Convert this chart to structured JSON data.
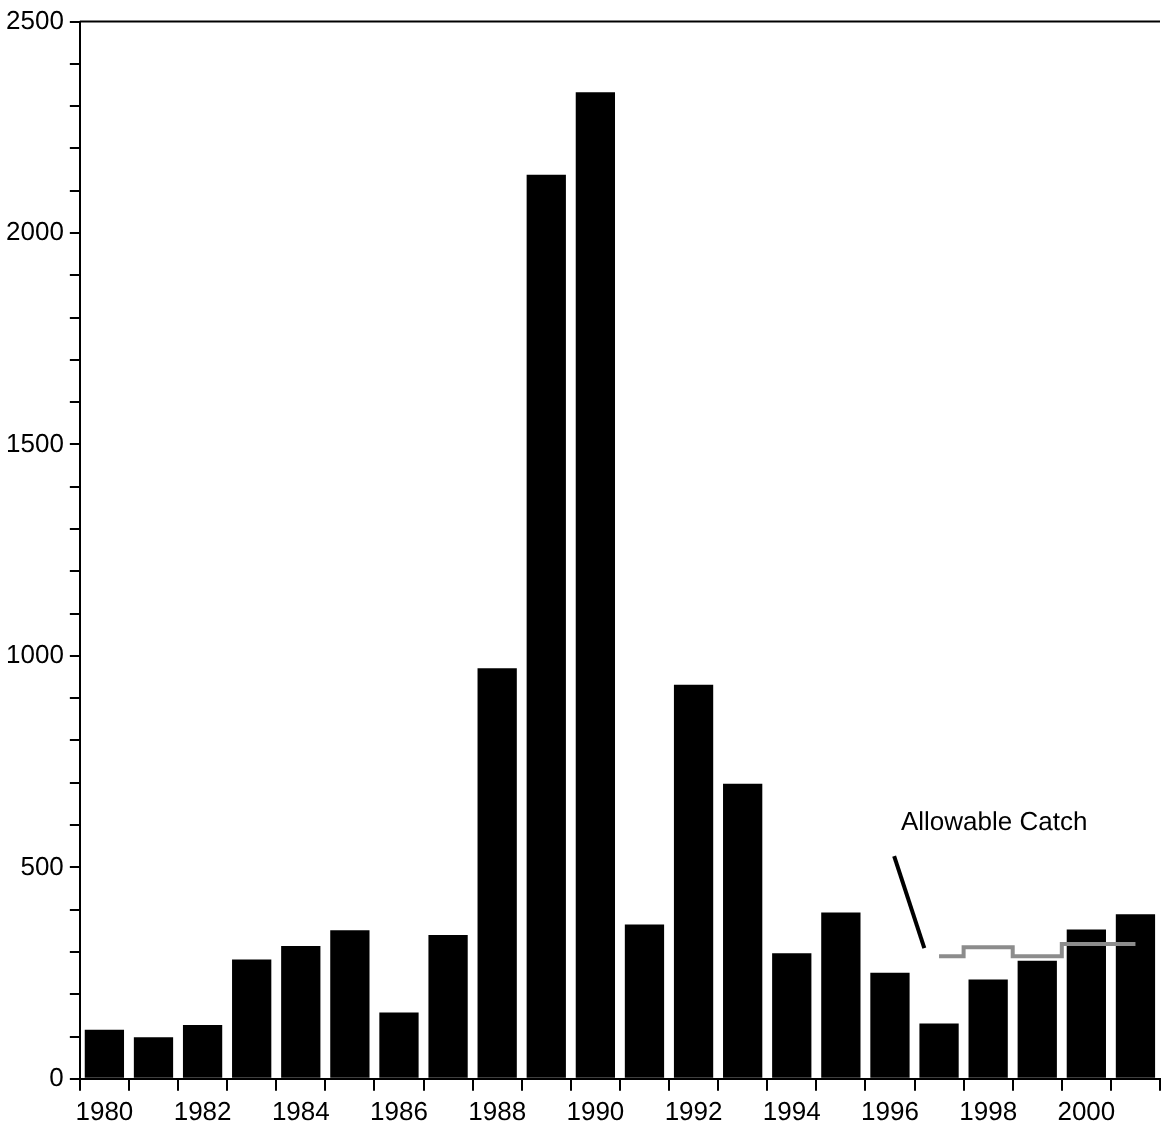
{
  "chart_data": {
    "type": "bar",
    "categories": [
      "1980",
      null,
      "1982",
      null,
      "1984",
      null,
      "1986",
      null,
      "1988",
      null,
      "1990",
      null,
      "1992",
      null,
      "1994",
      null,
      "1996",
      null,
      "1998",
      null,
      "2000",
      null
    ],
    "series": [
      {
        "color": "#000000",
        "values": [
          116,
          98,
          127,
          282,
          314,
          351,
          157,
          340,
          971,
          2138,
          2333,
          365,
          932,
          698,
          297,
          393,
          251,
          131,
          235,
          279,
          353,
          389
        ]
      },
      {
        "type": "step",
        "name": "Allowable Catch",
        "color": "#8c8c8c",
        "values": [
          null,
          null,
          null,
          null,
          null,
          null,
          null,
          null,
          null,
          null,
          null,
          null,
          null,
          null,
          null,
          null,
          null,
          290,
          311,
          290,
          319,
          319
        ]
      }
    ],
    "ylim": [
      0,
      2500
    ],
    "yticks": [
      0,
      {
        "value": 100,
        "label": null
      },
      {
        "value": 200,
        "label": null
      },
      {
        "value": 300,
        "label": null
      },
      {
        "value": 400,
        "label": null
      },
      500,
      {
        "value": 600,
        "label": null
      },
      {
        "value": 700,
        "label": null
      },
      {
        "value": 800,
        "label": null
      },
      {
        "value": 900,
        "label": null
      },
      1000,
      {
        "value": 1100,
        "label": null
      },
      {
        "value": 1200,
        "label": null
      },
      {
        "value": 1300,
        "label": null
      },
      {
        "value": 1400,
        "label": null
      },
      1500,
      {
        "value": 1600,
        "label": null
      },
      {
        "value": 1700,
        "label": null
      },
      {
        "value": 1800,
        "label": null
      },
      {
        "value": 1900,
        "label": null
      },
      2000,
      {
        "value": 2100,
        "label": null
      },
      {
        "value": 2200,
        "label": null
      },
      {
        "value": 2300,
        "label": null
      },
      {
        "value": 2400,
        "label": null
      },
      2500
    ],
    "grid": false,
    "legend": false
  }
}
